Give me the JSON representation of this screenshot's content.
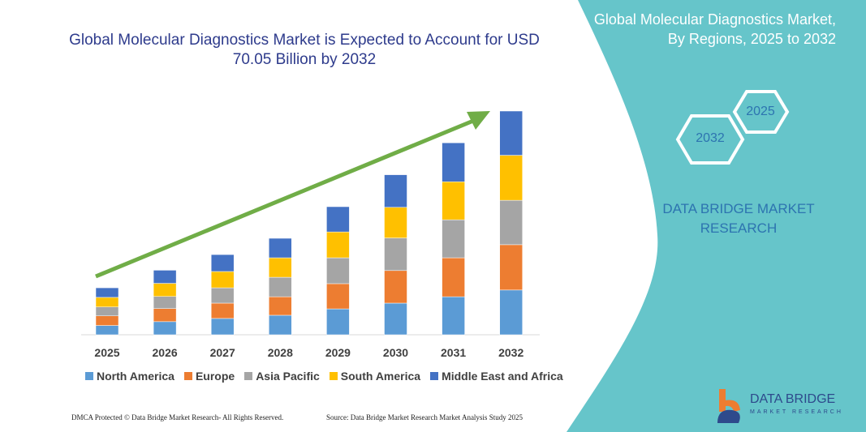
{
  "colors": {
    "teal": "#66c5ca",
    "arrow": "#70ad47",
    "series": [
      "#5b9bd5",
      "#ed7d31",
      "#a5a5a5",
      "#ffc000",
      "#4472c4"
    ]
  },
  "panel": {
    "title": "Global Molecular Diagnostics Market, By Regions, 2025 to 2032",
    "hex_start": "2025",
    "hex_end": "2032",
    "brand": "DATA BRIDGE MARKET RESEARCH"
  },
  "footer": {
    "dmca": "DMCA Protected © Data Bridge Market Research- All Rights Reserved.",
    "source": "Source: Data Bridge Market Research Market Analysis Study 2025"
  },
  "logo": {
    "line1": "DATA BRIDGE",
    "line2": "MARKET RESEARCH"
  },
  "chart_data": {
    "type": "bar",
    "stacked": true,
    "title": "Global Molecular Diagnostics Market is Expected to Account for USD 70.05 Billion by 2032",
    "categories": [
      "2025",
      "2026",
      "2027",
      "2028",
      "2029",
      "2030",
      "2031",
      "2032"
    ],
    "legend_position": "bottom",
    "grid": false,
    "series": [
      {
        "name": "North America",
        "values": [
          2.9,
          4.1,
          5.1,
          6.1,
          8.1,
          9.9,
          11.9,
          14.0
        ]
      },
      {
        "name": "Europe",
        "values": [
          3.0,
          4.1,
          4.8,
          5.8,
          7.9,
          10.2,
          12.2,
          14.2
        ]
      },
      {
        "name": "Asia Pacific",
        "values": [
          2.8,
          3.8,
          4.8,
          6.1,
          8.1,
          10.2,
          11.9,
          13.9
        ]
      },
      {
        "name": "South America",
        "values": [
          3.0,
          4.1,
          5.1,
          6.1,
          8.1,
          9.6,
          11.9,
          14.1
        ]
      },
      {
        "name": "Middle East and Africa",
        "values": [
          3.0,
          4.1,
          5.3,
          6.1,
          7.9,
          10.2,
          12.2,
          13.85
        ]
      }
    ]
  }
}
